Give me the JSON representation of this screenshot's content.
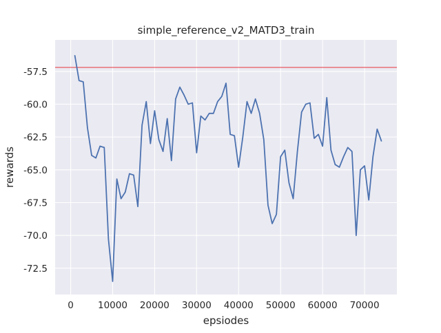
{
  "chart_data": {
    "type": "line",
    "title": "simple_reference_v2_MATD3_train",
    "xlabel": "epsiodes",
    "ylabel": "rewards",
    "xlim": [
      -3700,
      77700
    ],
    "ylim": [
      -74.5,
      -55.1
    ],
    "xticks": [
      0,
      10000,
      20000,
      30000,
      40000,
      50000,
      60000,
      70000
    ],
    "yticks": [
      -72.5,
      -70.0,
      -67.5,
      -65.0,
      -62.5,
      -60.0,
      -57.5
    ],
    "grid": true,
    "background": "#eaeaf2",
    "grid_color": "#ffffff",
    "reference_line": {
      "y": -57.2,
      "color": "#e8323c"
    },
    "series": [
      {
        "color": "#4c72b0",
        "x": [
          1000,
          2000,
          3000,
          4000,
          5000,
          6000,
          7000,
          8000,
          9000,
          10000,
          11000,
          12000,
          13000,
          14000,
          15000,
          16000,
          17000,
          18000,
          19000,
          20000,
          21000,
          22000,
          23000,
          24000,
          25000,
          26000,
          27000,
          28000,
          29000,
          30000,
          31000,
          32000,
          33000,
          34000,
          35000,
          36000,
          37000,
          38000,
          39000,
          40000,
          41000,
          42000,
          43000,
          44000,
          45000,
          46000,
          47000,
          48000,
          49000,
          50000,
          51000,
          52000,
          53000,
          54000,
          55000,
          56000,
          57000,
          58000,
          59000,
          60000,
          61000,
          62000,
          63000,
          64000,
          65000,
          66000,
          67000,
          68000,
          69000,
          70000,
          71000,
          72000,
          73000,
          74000
        ],
        "y": [
          -56.3,
          -58.2,
          -58.3,
          -61.8,
          -63.9,
          -64.1,
          -63.2,
          -63.3,
          -70.3,
          -73.5,
          -65.7,
          -67.2,
          -66.7,
          -65.3,
          -65.4,
          -67.8,
          -61.6,
          -59.8,
          -63.0,
          -60.5,
          -62.7,
          -63.6,
          -61.1,
          -64.3,
          -59.6,
          -58.7,
          -59.3,
          -60.0,
          -59.9,
          -63.7,
          -60.9,
          -61.2,
          -60.7,
          -60.7,
          -59.8,
          -59.4,
          -58.4,
          -62.3,
          -62.4,
          -64.8,
          -62.5,
          -59.8,
          -60.7,
          -59.6,
          -60.7,
          -62.7,
          -67.7,
          -69.1,
          -68.4,
          -64.0,
          -63.5,
          -66.0,
          -67.2,
          -63.6,
          -60.6,
          -60.0,
          -59.9,
          -62.6,
          -62.3,
          -63.2,
          -59.5,
          -63.5,
          -64.6,
          -64.8,
          -64.0,
          -63.3,
          -63.6,
          -70.0,
          -65.0,
          -64.7,
          -67.3,
          -64.0,
          -61.9,
          -62.8
        ]
      }
    ]
  }
}
